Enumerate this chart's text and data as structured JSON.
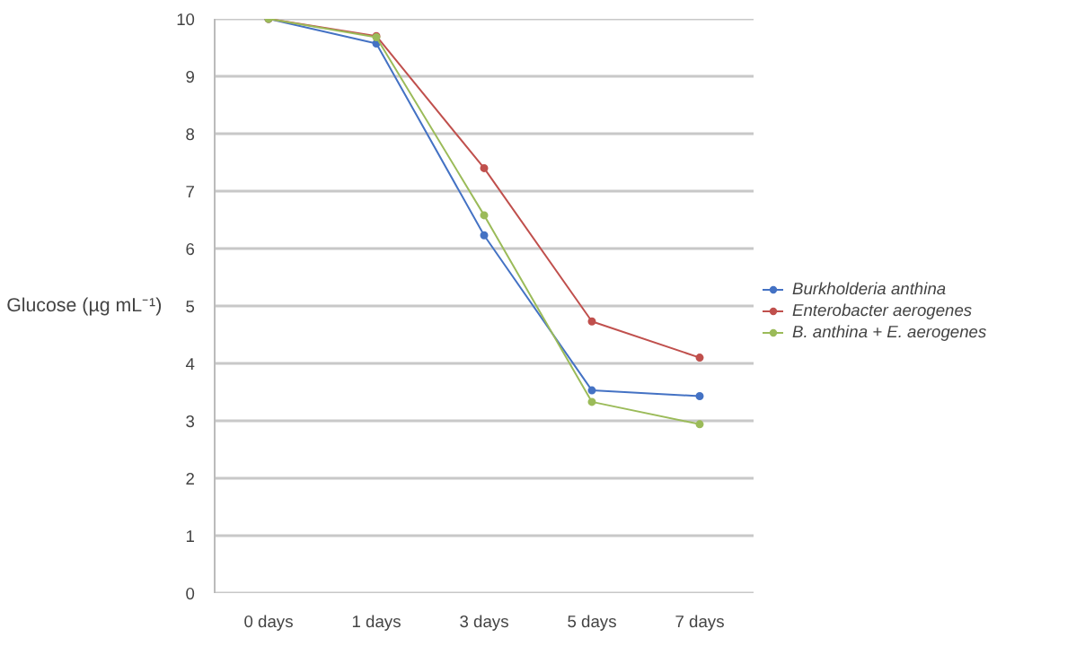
{
  "chart_data": {
    "type": "line",
    "ylabel": "Glucose (µg mL⁻¹)",
    "categories": [
      "0 days",
      "1 days",
      "3 days",
      "5 days",
      "7 days"
    ],
    "series": [
      {
        "name": "Burkholderia anthina",
        "color": "#4472c4",
        "values": [
          10,
          9.57,
          6.23,
          3.53,
          3.43
        ]
      },
      {
        "name": "Enterobacter aerogenes",
        "color": "#c0504d",
        "values": [
          10,
          9.7,
          7.4,
          4.73,
          4.1
        ]
      },
      {
        "name": "B. anthina + E. aerogenes",
        "color": "#9bbb59",
        "values": [
          10,
          9.68,
          6.58,
          3.33,
          2.94
        ]
      }
    ],
    "ylim": [
      0,
      10
    ],
    "yticks": [
      0,
      1,
      2,
      3,
      4,
      5,
      6,
      7,
      8,
      9,
      10
    ],
    "grid": "y",
    "legend": "right",
    "marker": "circle",
    "line_style": "solid"
  }
}
